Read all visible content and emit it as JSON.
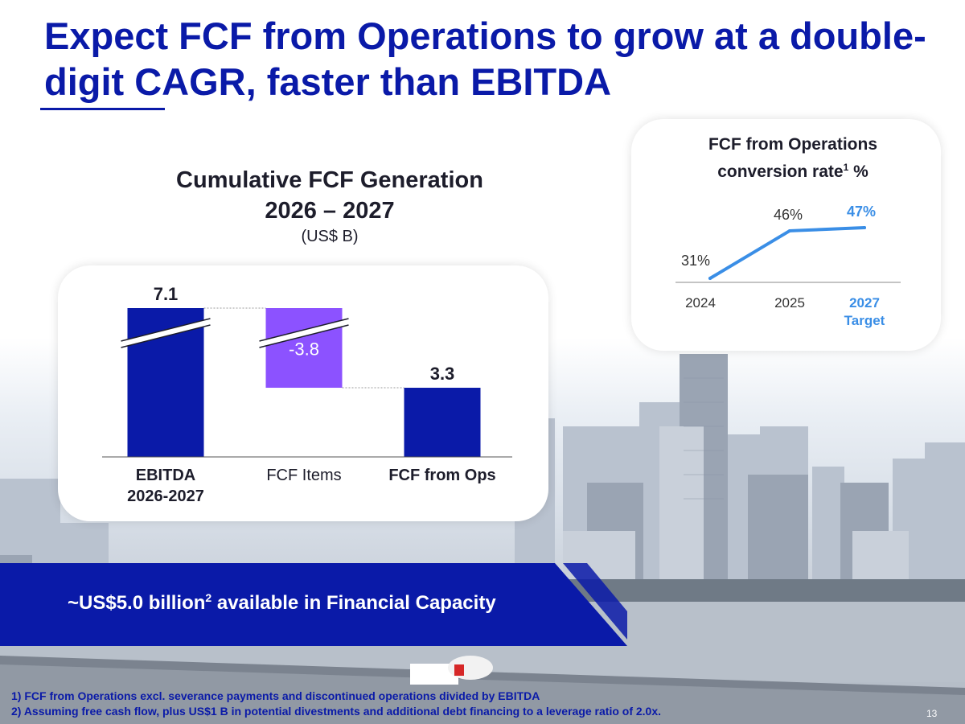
{
  "page": {
    "title": "Expect FCF from Operations to grow at a double-digit CAGR, faster than EBITDA",
    "page_number": "13"
  },
  "left_chart_header": {
    "title_line1": "Cumulative FCF Generation",
    "title_line2": "2026 – 2027",
    "unit": "(US$ B)"
  },
  "right_chart_header": {
    "title_line1": "FCF from Operations",
    "title_line2a": "conversion rate",
    "title_sup": "1",
    "title_line2b": " %"
  },
  "banner": {
    "text_a": "~US$5.0 billion",
    "sup": "2",
    "text_b": " available in Financial Capacity"
  },
  "footnotes": [
    "1)  FCF from Operations excl. severance payments and discontinued operations divided by EBITDA",
    "2)  Assuming free cash flow, plus US$1 B in potential divestments and additional debt financing to a  leverage ratio of 2.0x."
  ],
  "colors": {
    "brand": "#0a1aa8",
    "bar_purple": "#8c52ff",
    "line_blue": "#3a8ee6"
  },
  "chart_data": [
    {
      "type": "bar",
      "subtype": "waterfall",
      "title": "Cumulative FCF Generation 2026 – 2027",
      "unit": "(US$ B)",
      "categories": [
        "EBITDA\n2026-2027",
        "FCF Items",
        "FCF from Ops"
      ],
      "category_lines": [
        [
          "EBITDA",
          "2026-2027"
        ],
        [
          "FCF Items"
        ],
        [
          "FCF from Ops"
        ]
      ],
      "values": [
        7.1,
        -3.8,
        3.3
      ],
      "labels": [
        "7.1",
        "-3.8",
        "3.3"
      ],
      "ylim": [
        0,
        7.1
      ],
      "axis_break": true,
      "legend": "none"
    },
    {
      "type": "line",
      "title": "FCF from Operations conversion rate %",
      "categories": [
        "2024",
        "2025",
        "2027\nTarget"
      ],
      "category_lines": [
        [
          "2024"
        ],
        [
          "2025"
        ],
        [
          "2027",
          "Target"
        ]
      ],
      "values": [
        31,
        46,
        47
      ],
      "labels": [
        "31%",
        "46%",
        "47%"
      ],
      "ylim": [
        31,
        47
      ],
      "legend": "none"
    }
  ]
}
